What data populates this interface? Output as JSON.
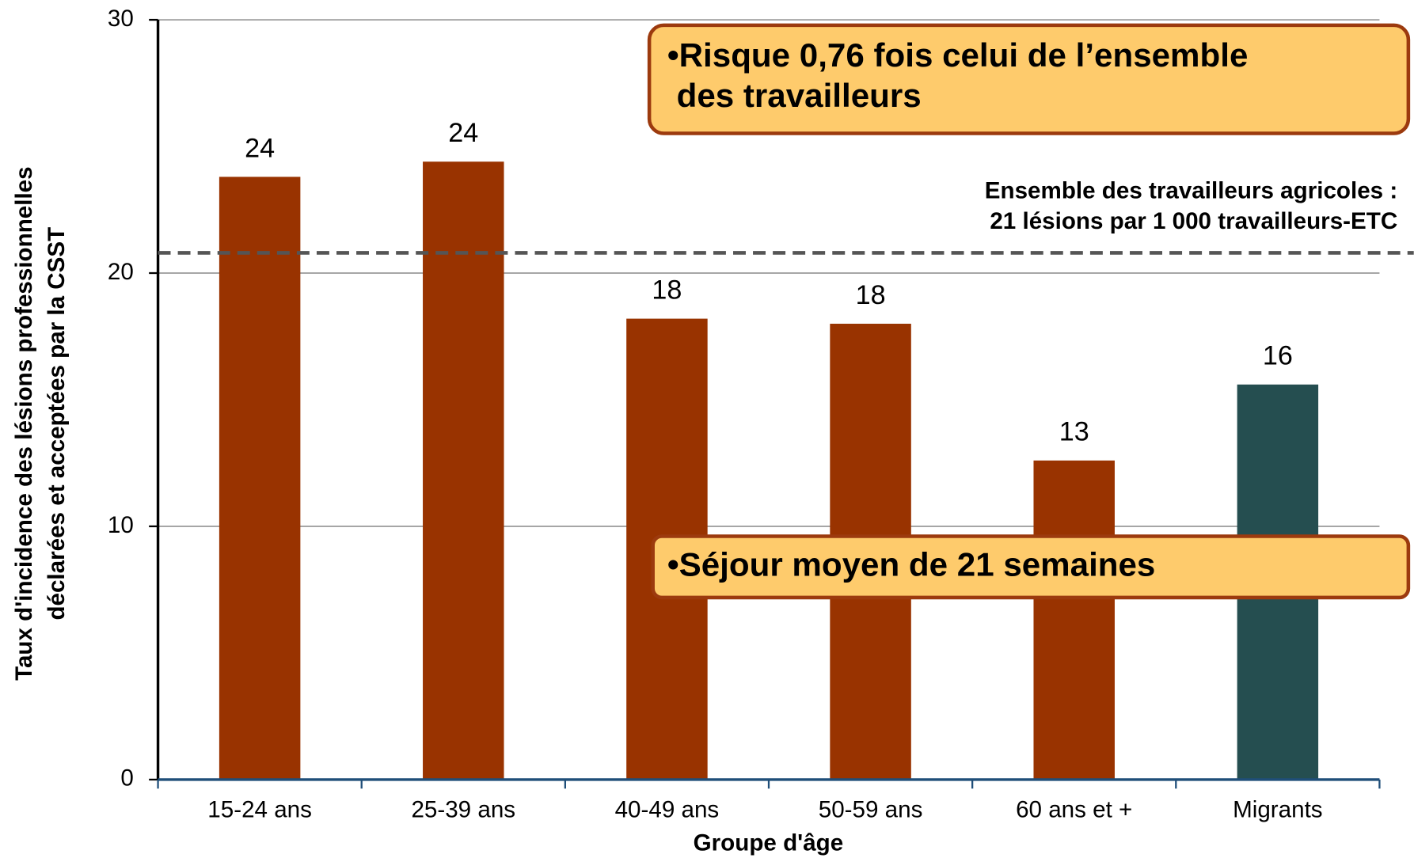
{
  "chart_data": {
    "type": "bar",
    "categories": [
      "15-24 ans",
      "25-39 ans",
      "40-49 ans",
      "50-59 ans",
      "60 ans et +",
      "Migrants"
    ],
    "values": [
      23.8,
      24.4,
      18.2,
      18.0,
      12.6,
      15.6
    ],
    "value_labels": [
      "24",
      "24",
      "18",
      "18",
      "13",
      "16"
    ],
    "colors": [
      "#993300",
      "#993300",
      "#993300",
      "#993300",
      "#993300",
      "#254e50"
    ],
    "ylim": [
      0,
      30
    ],
    "yticks": [
      0,
      10,
      20,
      30
    ],
    "grid": true,
    "x_label": "Groupe d'âge",
    "y_label": [
      "Taux d'incidence des lésions professionnelles",
      "déclarées et acceptées par la CSST"
    ],
    "reference_line": {
      "value": 20.8,
      "label": [
        "Ensemble des travailleurs agricoles :",
        "21 lésions par 1 000 travailleurs-ETC"
      ]
    },
    "annotations": [
      [
        "•Risque 0,76 fois celui de l’ensemble",
        " des travailleurs"
      ],
      [
        "•Séjour moyen de 21 semaines"
      ]
    ]
  }
}
